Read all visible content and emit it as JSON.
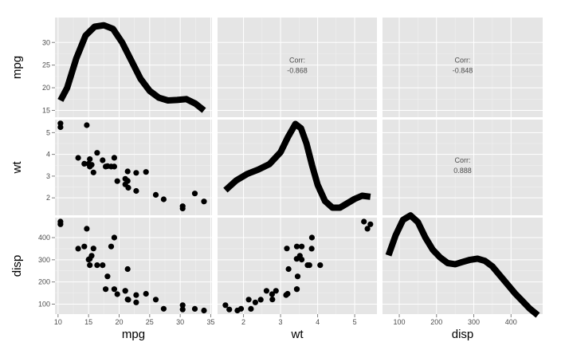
{
  "chart_data": {
    "type": "scatterplot-matrix",
    "variables": [
      "mpg",
      "wt",
      "disp"
    ],
    "background": "#e5e5e5",
    "grid": true,
    "axes": {
      "mpg": {
        "range": [
          9.5,
          35.2
        ],
        "ticks": [
          10,
          15,
          20,
          25,
          30,
          35
        ]
      },
      "wt": {
        "range": [
          1.3,
          5.6
        ],
        "ticks": [
          2,
          3,
          4,
          5
        ]
      },
      "disp": {
        "range": [
          55,
          485
        ],
        "ticks": [
          100,
          200,
          300,
          400
        ]
      },
      "mpg_density_axis": {
        "range": [
          13.5,
          35.5
        ],
        "ticks": [
          15,
          20,
          25,
          30
        ]
      },
      "wt_row_axis": {
        "range": [
          1.2,
          5.6
        ],
        "ticks": [
          2,
          3,
          4,
          5
        ]
      },
      "disp_row_axis": {
        "range": [
          55,
          490
        ],
        "ticks": [
          100,
          200,
          300,
          400
        ]
      }
    },
    "correlations": [
      {
        "row": "mpg",
        "col": "wt",
        "label": "Corr:",
        "value": "-0.868"
      },
      {
        "row": "mpg",
        "col": "disp",
        "label": "Corr:",
        "value": "-0.848"
      },
      {
        "row": "wt",
        "col": "disp",
        "label": "Corr:",
        "value": "0.888"
      }
    ],
    "density_curves": {
      "mpg": {
        "x": [
          10.4,
          11.5,
          13,
          14.5,
          16,
          17.5,
          19,
          20.5,
          22,
          23.5,
          25,
          26.5,
          28,
          29.5,
          31,
          32.5,
          33.9
        ],
        "y": [
          17.2,
          20,
          26.5,
          31.5,
          33.5,
          33.8,
          33,
          30,
          26,
          22,
          19.3,
          17.8,
          17.2,
          17.3,
          17.5,
          16.5,
          15
        ]
      },
      "wt": {
        "x": [
          1.513,
          1.8,
          2.1,
          2.4,
          2.7,
          3.0,
          3.2,
          3.4,
          3.55,
          3.7,
          3.85,
          4.0,
          4.2,
          4.4,
          4.6,
          4.8,
          5.0,
          5.2,
          5.424
        ],
        "y": [
          2.35,
          2.8,
          3.1,
          3.3,
          3.55,
          4.1,
          4.8,
          5.4,
          5.2,
          4.5,
          3.5,
          2.6,
          1.85,
          1.55,
          1.55,
          1.75,
          1.95,
          2.1,
          2.05
        ]
      },
      "disp": {
        "x": [
          71.1,
          90,
          110,
          130,
          150,
          170,
          190,
          210,
          230,
          250,
          270,
          290,
          310,
          330,
          350,
          370,
          390,
          410,
          430,
          450,
          472
        ],
        "y": [
          320,
          410,
          480,
          500,
          470,
          400,
          345,
          310,
          285,
          280,
          290,
          300,
          305,
          295,
          270,
          230,
          190,
          150,
          115,
          80,
          50
        ]
      }
    },
    "points": {
      "mpg": [
        21,
        21,
        22.8,
        21.4,
        18.7,
        18.1,
        14.3,
        24.4,
        22.8,
        19.2,
        17.8,
        16.4,
        17.3,
        15.2,
        10.4,
        10.4,
        14.7,
        32.4,
        30.4,
        33.9,
        21.5,
        15.5,
        15.2,
        13.3,
        19.2,
        27.3,
        26,
        30.4,
        15.8,
        19.7,
        15,
        21.4
      ],
      "wt": [
        2.62,
        2.875,
        2.32,
        3.215,
        3.44,
        3.46,
        3.57,
        3.19,
        3.15,
        3.44,
        3.44,
        4.07,
        3.73,
        3.78,
        5.25,
        5.424,
        5.345,
        2.2,
        1.615,
        1.835,
        2.465,
        3.52,
        3.435,
        3.84,
        3.845,
        1.935,
        2.14,
        1.513,
        3.17,
        2.77,
        3.57,
        2.78
      ],
      "disp": [
        160,
        160,
        108,
        258,
        360,
        225,
        360,
        146.7,
        140.8,
        167.6,
        167.6,
        275.8,
        275.8,
        275.8,
        472,
        460,
        440,
        78.7,
        75.7,
        71.1,
        120.1,
        318,
        304,
        350,
        400,
        79,
        120.3,
        95.1,
        351,
        145,
        301,
        121
      ]
    },
    "xlabels": [
      "mpg",
      "wt",
      "disp"
    ],
    "ylabels": [
      "mpg",
      "wt",
      "disp"
    ]
  }
}
